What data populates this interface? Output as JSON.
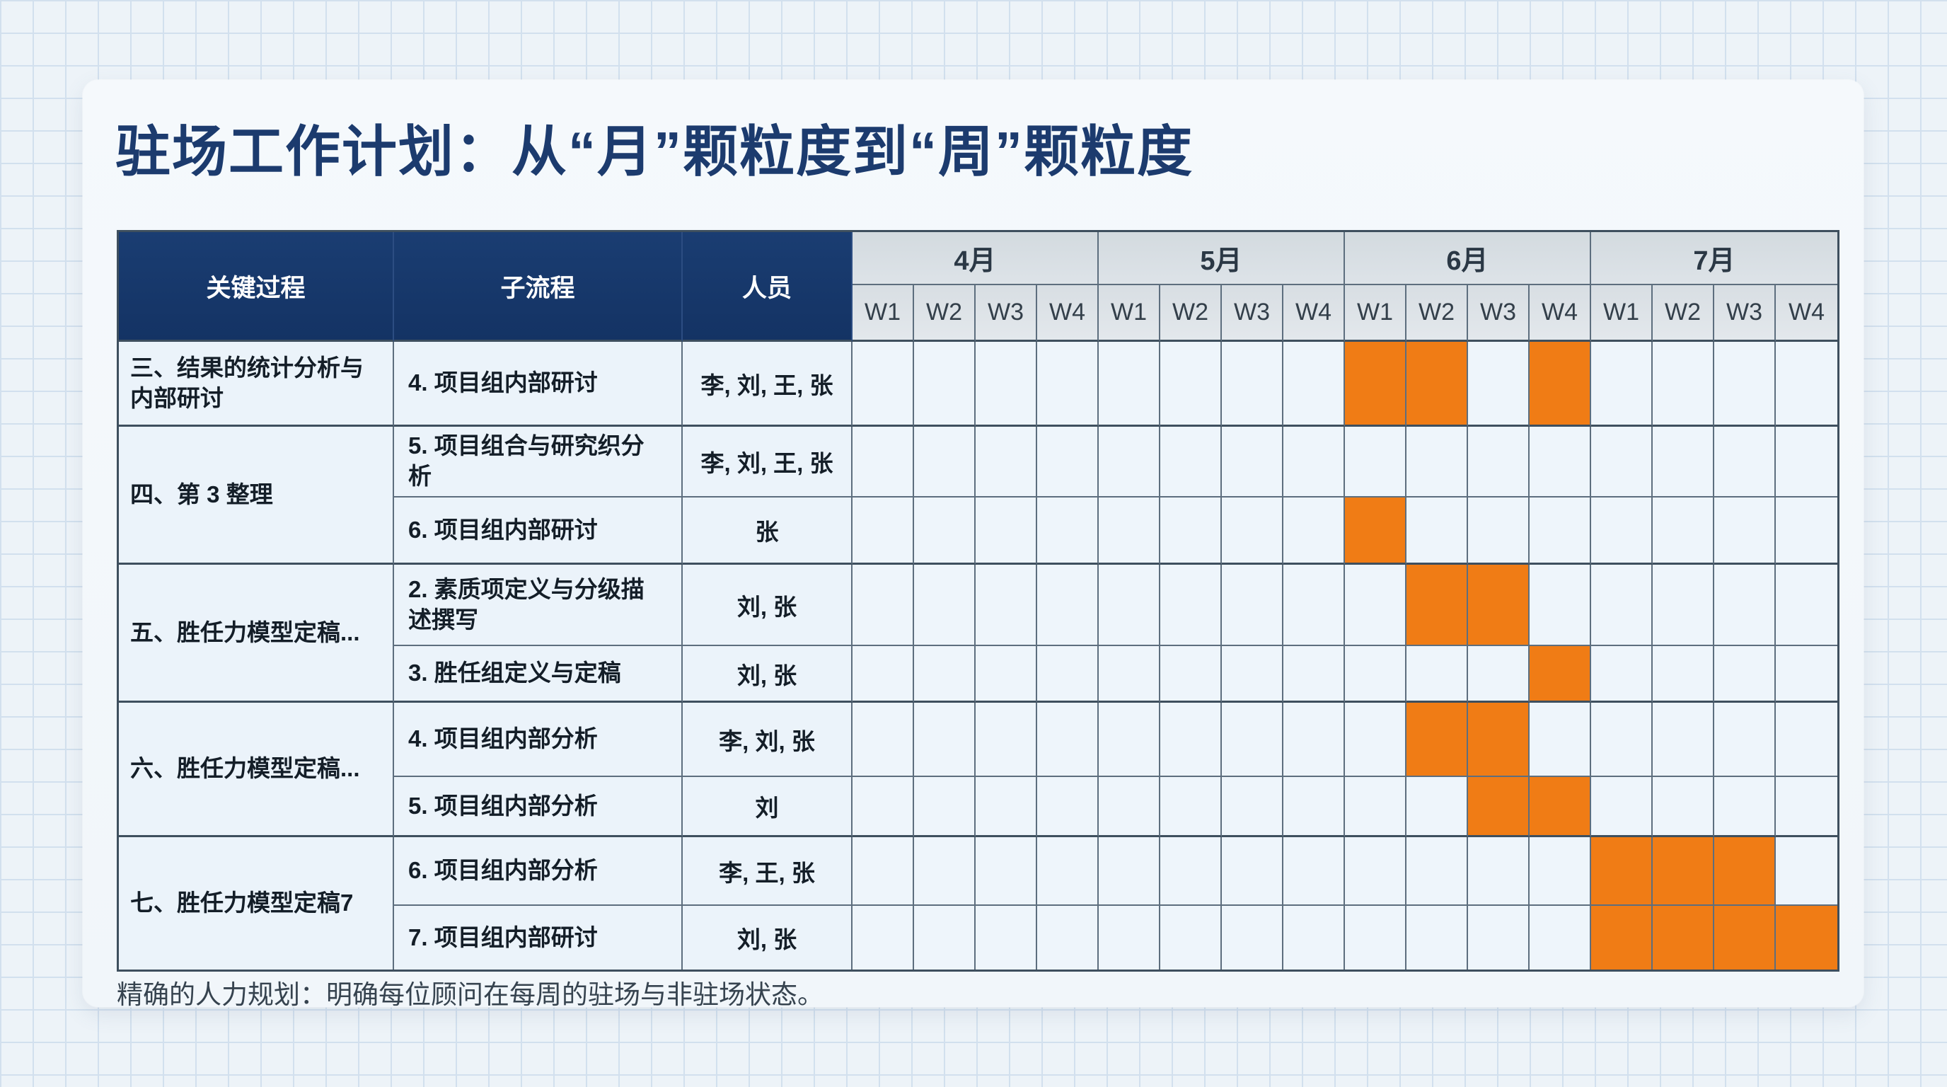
{
  "title": "驻场工作计划：从“月”颗粒度到“周”颗粒度",
  "footnote": "精确的人力规划：明确每位顾问在每周的驻场与非驻场状态。",
  "colors": {
    "accent_orange": "#f07c15",
    "header_navy": "#17386b",
    "header_gray": "#d8dee3",
    "cell_blue": "#eef5fb",
    "title_navy": "#1c3b6e"
  },
  "table": {
    "headers": {
      "process": "关键过程",
      "subprocess": "子流程",
      "personnel": "人员"
    },
    "months": [
      "4月",
      "5月",
      "6月",
      "7月"
    ],
    "weeks": [
      "W1",
      "W2",
      "W3",
      "W4"
    ],
    "groups": [
      {
        "process": "三、结果的统计分析与内部研讨",
        "rows": [
          {
            "subprocess": "4. 项目组内部研讨",
            "personnel": "李, 刘, 王, 张",
            "filled": [
              8,
              9,
              11
            ]
          }
        ]
      },
      {
        "process": "四、第 3 整理",
        "rows": [
          {
            "subprocess": "5. 项目组合与研究织分析",
            "personnel": "李, 刘, 王, 张",
            "filled": []
          },
          {
            "subprocess": "6. 项目组内部研讨",
            "personnel": "张",
            "filled": [
              8
            ]
          }
        ]
      },
      {
        "process": "五、胜任力模型定稿...",
        "rows": [
          {
            "subprocess": "2. 素质项定义与分级描述撰写",
            "personnel": "刘, 张",
            "filled": [
              9,
              10
            ]
          },
          {
            "subprocess": "3. 胜任组定义与定稿",
            "personnel": "刘, 张",
            "filled": [
              11
            ]
          }
        ]
      },
      {
        "process": "六、胜任力模型定稿...",
        "rows": [
          {
            "subprocess": "4. 项目组内部分析",
            "personnel": "李, 刘, 张",
            "filled": [
              9,
              10
            ]
          },
          {
            "subprocess": "5. 项目组内部分析",
            "personnel": "刘",
            "filled": [
              10,
              11
            ]
          }
        ]
      },
      {
        "process": "七、胜任力模型定稿7",
        "rows": [
          {
            "subprocess": "6. 项目组内部分析",
            "personnel": "李, 王, 张",
            "filled": [
              12,
              13,
              14
            ]
          },
          {
            "subprocess": "7. 项目组内部研讨",
            "personnel": "刘, 张",
            "filled": [
              12,
              13,
              14,
              15
            ]
          }
        ]
      }
    ]
  },
  "chart_data": {
    "type": "table",
    "subtype": "gantt",
    "title": "驻场工作计划：从“月”颗粒度到“周”颗粒度",
    "columns": [
      "关键过程",
      "子流程",
      "人员",
      "4月W1",
      "4月W2",
      "4月W3",
      "4月W4",
      "5月W1",
      "5月W2",
      "5月W3",
      "5月W4",
      "6月W1",
      "6月W2",
      "6月W3",
      "6月W4",
      "7月W1",
      "7月W2",
      "7月W3",
      "7月W4"
    ],
    "months": [
      "4月",
      "5月",
      "6月",
      "7月"
    ],
    "weeks_per_month": [
      "W1",
      "W2",
      "W3",
      "W4"
    ],
    "fill_color": "#f07c15",
    "tasks": [
      {
        "process": "三、结果的统计分析与内部研讨",
        "subprocess": "4. 项目组内部研讨",
        "personnel": "李, 刘, 王, 张",
        "onsite_weeks": [
          "6月W1",
          "6月W2",
          "6月W4"
        ]
      },
      {
        "process": "四、第 3 整理",
        "subprocess": "5. 项目组合与研究织分析",
        "personnel": "李, 刘, 王, 张",
        "onsite_weeks": []
      },
      {
        "process": "四、第 3 整理",
        "subprocess": "6. 项目组内部研讨",
        "personnel": "张",
        "onsite_weeks": [
          "6月W1"
        ]
      },
      {
        "process": "五、胜任力模型定稿...",
        "subprocess": "2. 素质项定义与分级描述撰写",
        "personnel": "刘, 张",
        "onsite_weeks": [
          "6月W2",
          "6月W3"
        ]
      },
      {
        "process": "五、胜任力模型定稿...",
        "subprocess": "3. 胜任组定义与定稿",
        "personnel": "刘, 张",
        "onsite_weeks": [
          "6月W4"
        ]
      },
      {
        "process": "六、胜任力模型定稿...",
        "subprocess": "4. 项目组内部分析",
        "personnel": "李, 刘, 张",
        "onsite_weeks": [
          "6月W2",
          "6月W3"
        ]
      },
      {
        "process": "六、胜任力模型定稿...",
        "subprocess": "5. 项目组内部分析",
        "personnel": "刘",
        "onsite_weeks": [
          "6月W3",
          "6月W4"
        ]
      },
      {
        "process": "七、胜任力模型定稿7",
        "subprocess": "6. 项目组内部分析",
        "personnel": "李, 王, 张",
        "onsite_weeks": [
          "7月W1",
          "7月W2",
          "7月W3"
        ]
      },
      {
        "process": "七、胜任力模型定稿7",
        "subprocess": "7. 项目组内部研讨",
        "personnel": "刘, 张",
        "onsite_weeks": [
          "7月W1",
          "7月W2",
          "7月W3",
          "7月W4"
        ]
      }
    ]
  }
}
